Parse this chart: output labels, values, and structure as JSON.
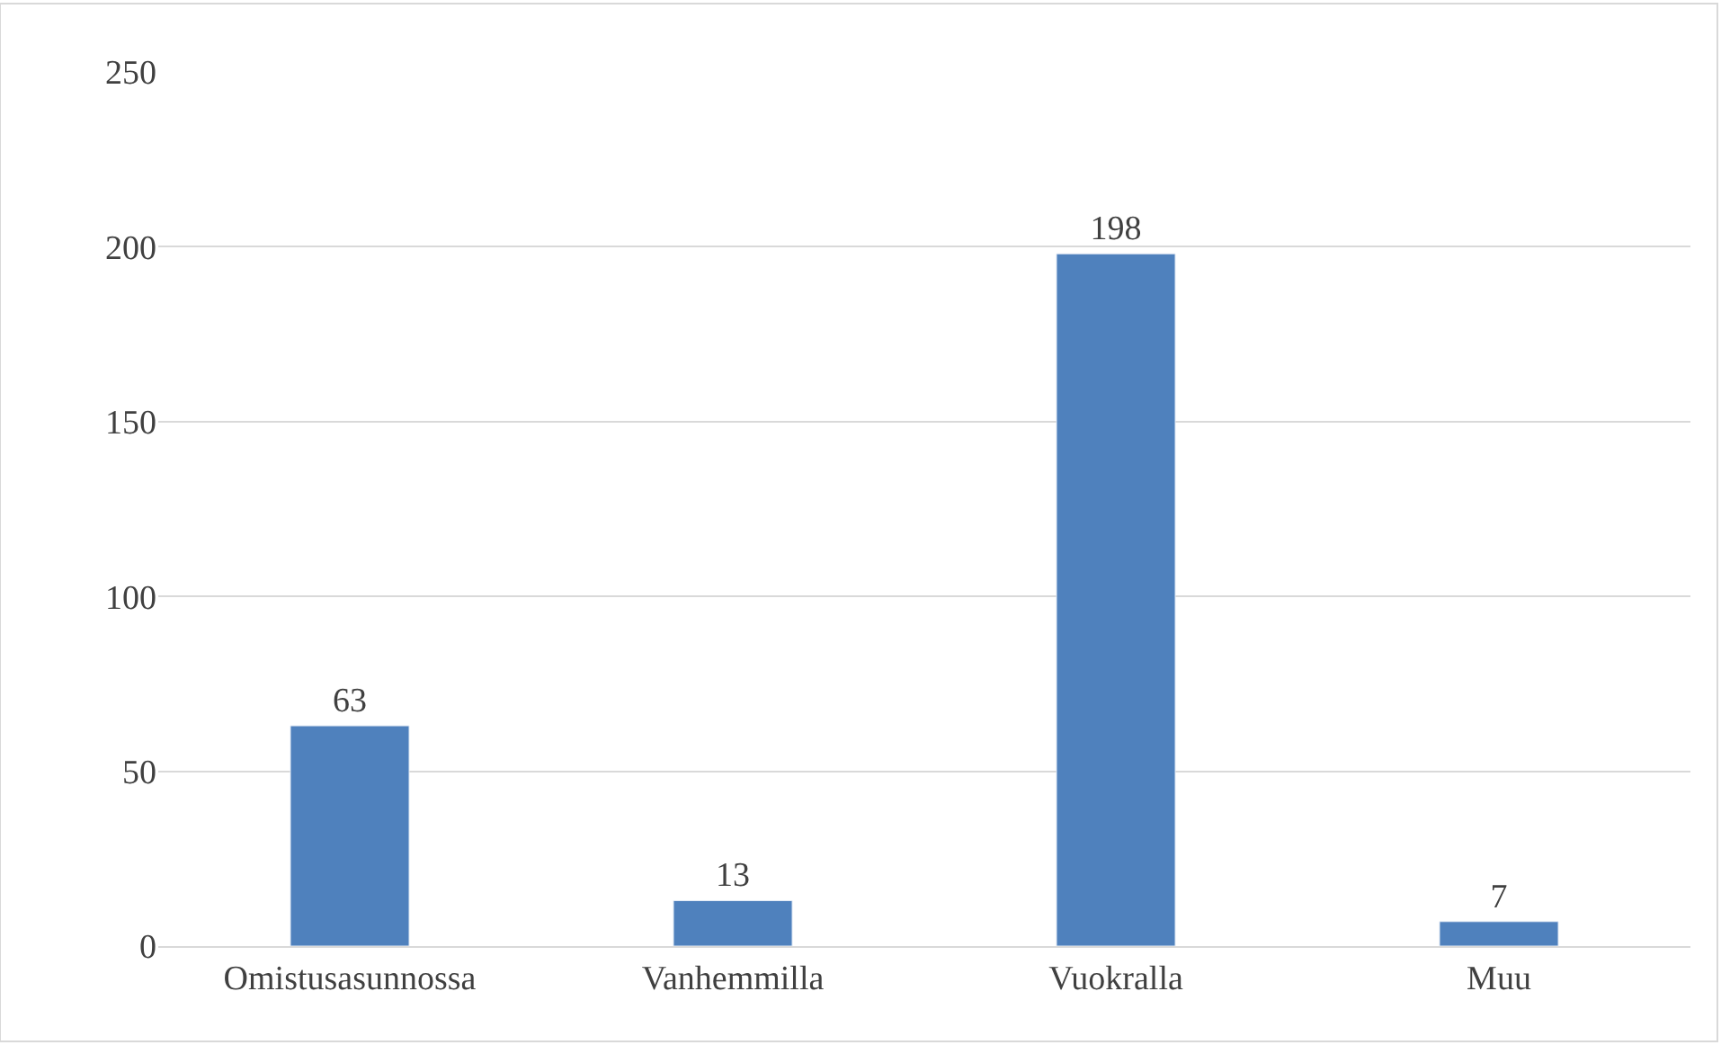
{
  "chart_data": {
    "type": "bar",
    "categories": [
      "Omistusasunnossa",
      "Vanhemmilla",
      "Vuokralla",
      "Muu"
    ],
    "values": [
      63,
      13,
      198,
      7
    ],
    "color": "#4f81bd",
    "ylim": [
      0,
      250
    ],
    "yticks": [
      0,
      50,
      100,
      150,
      200,
      250
    ],
    "grid": "y",
    "data_labels": true
  }
}
